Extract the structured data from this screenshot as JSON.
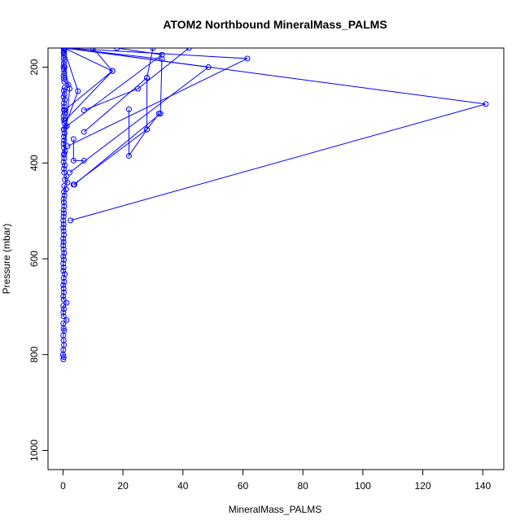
{
  "chart_data": {
    "type": "line",
    "title": "ATOM2 Northbound MineralMass_PALMS",
    "xlabel": "MineralMass_PALMS",
    "ylabel": "Pressure (mbar)",
    "xlim": [
      -5,
      147
    ],
    "ylim": [
      1040,
      160
    ],
    "y_inverted": true,
    "x_ticks": [
      0,
      20,
      40,
      60,
      80,
      100,
      120,
      140
    ],
    "y_ticks": [
      200,
      400,
      600,
      800,
      1000
    ],
    "grid": false,
    "legend": "none",
    "series": [
      {
        "color": "#0000ff",
        "marker": "open-circle",
        "points": [
          [
            0.1,
            810
          ],
          [
            0.2,
            805
          ],
          [
            0.0,
            800
          ],
          [
            0.1,
            790
          ],
          [
            0.3,
            780
          ],
          [
            0.2,
            770
          ],
          [
            0.1,
            760
          ],
          [
            0.4,
            750
          ],
          [
            0.2,
            745
          ],
          [
            0.1,
            735
          ],
          [
            1.2,
            728
          ],
          [
            0.2,
            720
          ],
          [
            0.1,
            712
          ],
          [
            0.3,
            705
          ],
          [
            0.1,
            698
          ],
          [
            1.2,
            692
          ],
          [
            0.2,
            685
          ],
          [
            0.1,
            678
          ],
          [
            0.3,
            670
          ],
          [
            0.2,
            662
          ],
          [
            0.1,
            655
          ],
          [
            0.4,
            648
          ],
          [
            0.2,
            640
          ],
          [
            0.6,
            632
          ],
          [
            0.1,
            625
          ],
          [
            0.2,
            618
          ],
          [
            0.1,
            610
          ],
          [
            0.3,
            602
          ],
          [
            0.1,
            595
          ],
          [
            0.4,
            588
          ],
          [
            0.2,
            580
          ],
          [
            0.1,
            572
          ],
          [
            0.2,
            565
          ],
          [
            0.1,
            558
          ],
          [
            0.3,
            550
          ],
          [
            0.2,
            542
          ],
          [
            0.1,
            535
          ],
          [
            0.2,
            528
          ],
          [
            0.1,
            520
          ],
          [
            0.2,
            512
          ],
          [
            0.3,
            505
          ],
          [
            0.2,
            498
          ],
          [
            0.4,
            490
          ],
          [
            0.3,
            482
          ],
          [
            0.2,
            475
          ],
          [
            0.5,
            468
          ],
          [
            0.3,
            460
          ],
          [
            1.0,
            455
          ],
          [
            0.4,
            448
          ],
          [
            1.5,
            441
          ],
          [
            0.6,
            435
          ],
          [
            1.2,
            428
          ],
          [
            0.4,
            420
          ],
          [
            0.3,
            412
          ],
          [
            0.6,
            405
          ],
          [
            0.2,
            398
          ],
          [
            0.4,
            390
          ],
          [
            0.3,
            383
          ],
          [
            0.7,
            376
          ],
          [
            0.3,
            368
          ],
          [
            0.2,
            360
          ],
          [
            0.4,
            353
          ],
          [
            0.3,
            345
          ],
          [
            0.5,
            338
          ],
          [
            0.2,
            330
          ],
          [
            1.3,
            323
          ],
          [
            0.4,
            316
          ],
          [
            0.3,
            309
          ],
          [
            0.2,
            302
          ],
          [
            0.5,
            296
          ],
          [
            0.3,
            289
          ],
          [
            0.4,
            282
          ],
          [
            0.3,
            275
          ],
          [
            0.6,
            268
          ],
          [
            0.2,
            262
          ],
          [
            0.5,
            256
          ],
          [
            0.3,
            249
          ],
          [
            0.5,
            243
          ],
          [
            1.8,
            237
          ],
          [
            0.4,
            230
          ],
          [
            0.3,
            224
          ],
          [
            0.2,
            218
          ],
          [
            0.4,
            212
          ],
          [
            0.3,
            205
          ],
          [
            0.2,
            199
          ],
          [
            0.3,
            193
          ],
          [
            0.4,
            187
          ],
          [
            0.2,
            181
          ],
          [
            0.3,
            175
          ],
          [
            0.4,
            169
          ],
          [
            0.3,
            164
          ],
          [
            0.2,
            160
          ],
          [
            0.4,
            162
          ],
          [
            0.2,
            170
          ]
        ],
        "excursions": [
          [
            [
              2.5,
              520
            ],
            [
              141,
              277
            ],
            [
              0.8,
              160
            ]
          ],
          [
            [
              3.8,
              445
            ],
            [
              32.5,
              297
            ],
            [
              33,
              183
            ],
            [
              0.5,
              160
            ]
          ],
          [
            [
              2.2,
              420
            ],
            [
              48.5,
              200
            ],
            [
              0.6,
              160
            ]
          ],
          [
            [
              1.5,
              365
            ],
            [
              61.5,
              182
            ],
            [
              0.4,
              160
            ]
          ],
          [
            [
              0.8,
              325
            ],
            [
              33,
              174
            ],
            [
              18,
              160
            ]
          ],
          [
            [
              0.6,
              312
            ],
            [
              16.5,
              208
            ],
            [
              0.4,
              160
            ]
          ],
          [
            [
              0.5,
              290
            ],
            [
              16.5,
              208
            ],
            [
              10,
              160
            ]
          ],
          [
            [
              7.0,
              290
            ],
            [
              25,
              245
            ],
            [
              42,
              160
            ]
          ],
          [
            [
              3.5,
              350
            ],
            [
              3.5,
              395
            ],
            [
              7.0,
              395
            ]
          ],
          [
            [
              7.0,
              335
            ],
            [
              28,
              222
            ],
            [
              30,
              160
            ]
          ],
          [
            [
              22,
              288
            ],
            [
              22,
              385
            ],
            [
              28,
              330
            ],
            [
              28,
              222
            ]
          ],
          [
            [
              3.5,
              445
            ],
            [
              28,
              330
            ],
            [
              32,
              297
            ]
          ],
          [
            [
              0.4,
              380
            ],
            [
              2.2,
              245
            ],
            [
              0.5,
              200
            ]
          ],
          [
            [
              0.3,
              330
            ],
            [
              5.0,
              250
            ],
            [
              0.2,
              160
            ]
          ]
        ]
      }
    ]
  }
}
